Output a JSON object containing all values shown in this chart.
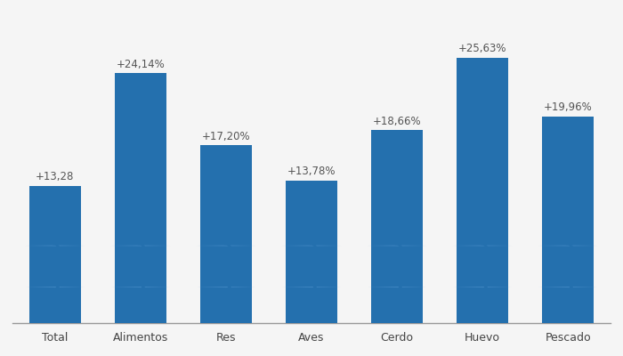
{
  "categories": [
    "Total",
    "Alimentos",
    "Res",
    "Aves",
    "Cerdo",
    "Huevo",
    "Pescado"
  ],
  "values": [
    13.28,
    24.14,
    17.2,
    13.78,
    18.66,
    25.63,
    19.96
  ],
  "labels": [
    "+13,28",
    "+24,14%",
    "+17,20%",
    "+13,78%",
    "+18,66%",
    "+25,63%",
    "+19,96%"
  ],
  "bar_color": "#2470ae",
  "watermark_color": "#5b9bd5",
  "background_color": "#f5f5f5",
  "ylim": [
    0,
    30
  ],
  "label_fontsize": 8.5,
  "tick_fontsize": 9,
  "label_color": "#555555",
  "bar_width": 0.6
}
